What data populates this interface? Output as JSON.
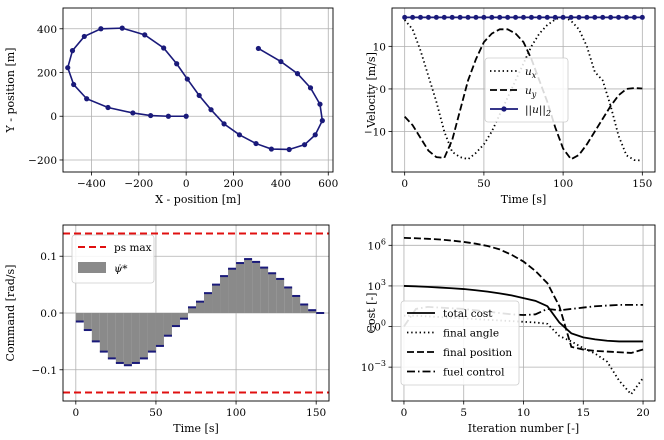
{
  "chart_data": [
    {
      "type": "line",
      "title": "",
      "xlabel": "X - position [m]",
      "ylabel": "Y - position [m]",
      "xlim": [
        -520,
        620
      ],
      "ylim": [
        -255,
        495
      ],
      "xticks": [
        -400,
        -200,
        0,
        200,
        400,
        600
      ],
      "yticks": [
        -200,
        0,
        200,
        400
      ],
      "xtick_labels": [
        "−400",
        "−200",
        "0",
        "200",
        "400",
        "600"
      ],
      "ytick_labels": [
        "−200",
        "0",
        "200",
        "400"
      ],
      "grid": true,
      "color": "#1a1a7a",
      "series": [
        {
          "name": "trajectory",
          "points": [
            [
              0,
              0
            ],
            [
              -75,
              0
            ],
            [
              -150,
              3
            ],
            [
              -225,
              15
            ],
            [
              -330,
              40
            ],
            [
              -420,
              80
            ],
            [
              -475,
              145
            ],
            [
              -500,
              222
            ],
            [
              -480,
              300
            ],
            [
              -430,
              365
            ],
            [
              -360,
              400
            ],
            [
              -270,
              403
            ],
            [
              -175,
              372
            ],
            [
              -95,
              312
            ],
            [
              -40,
              240
            ],
            [
              5,
              170
            ],
            [
              55,
              95
            ],
            [
              105,
              30
            ],
            [
              160,
              -35
            ],
            [
              225,
              -85
            ],
            [
              295,
              -125
            ],
            [
              360,
              -150
            ],
            [
              435,
              -152
            ],
            [
              500,
              -130
            ],
            [
              545,
              -85
            ],
            [
              575,
              -20
            ],
            [
              565,
              55
            ],
            [
              525,
              130
            ],
            [
              470,
              195
            ],
            [
              400,
              250
            ],
            [
              305,
              310
            ]
          ]
        }
      ]
    },
    {
      "type": "line",
      "title": "",
      "xlabel": "Time [s]",
      "ylabel": "Velocity [m/s]",
      "xlim": [
        -8,
        158
      ],
      "ylim": [
        -19.5,
        19
      ],
      "xticks": [
        0,
        50,
        100,
        150
      ],
      "yticks": [
        -10,
        0,
        10
      ],
      "xtick_labels": [
        "0",
        "50",
        "100",
        "150"
      ],
      "ytick_labels": [
        "−10",
        "0",
        "10"
      ],
      "grid": true,
      "legend": [
        "u_x",
        "u_y",
        "||u||_2"
      ],
      "legend_placement": "center-right",
      "series": [
        {
          "name": "u_x",
          "style": "dotted",
          "x": [
            0,
            5,
            10,
            15,
            20,
            25,
            30,
            35,
            40,
            45,
            50,
            55,
            60,
            65,
            70,
            75,
            80,
            85,
            90,
            95,
            100,
            105,
            110,
            115,
            120,
            125,
            130,
            135,
            140,
            145,
            150
          ],
          "values": [
            16.2,
            14,
            9,
            3,
            -3,
            -10,
            -14.8,
            -16,
            -16.5,
            -15,
            -13,
            -10,
            -6,
            -2,
            2,
            6,
            10,
            13,
            15,
            16.3,
            17,
            16,
            14,
            10,
            4,
            2,
            -4,
            -11,
            -15.6,
            -16.7,
            -16.8
          ]
        },
        {
          "name": "u_y",
          "style": "dashed",
          "x": [
            0,
            5,
            10,
            15,
            20,
            25,
            30,
            35,
            40,
            45,
            50,
            55,
            60,
            65,
            70,
            75,
            80,
            85,
            90,
            95,
            100,
            105,
            110,
            115,
            120,
            125,
            130,
            135,
            140,
            145,
            150
          ],
          "values": [
            -6.5,
            -8.5,
            -11.5,
            -14.5,
            -16,
            -16.2,
            -12,
            -5,
            2,
            7,
            11,
            13,
            14,
            14,
            13,
            11,
            7,
            2,
            -3,
            -9,
            -14,
            -16.5,
            -15.5,
            -13,
            -10,
            -7,
            -4,
            -1.5,
            0,
            0.2,
            0.1
          ]
        },
        {
          "name": "||u||_2",
          "style": "solid-marker",
          "color": "#1a1a7a",
          "x": [
            0,
            5,
            10,
            15,
            20,
            25,
            30,
            35,
            40,
            45,
            50,
            55,
            60,
            65,
            70,
            75,
            80,
            85,
            90,
            95,
            100,
            105,
            110,
            115,
            120,
            125,
            130,
            135,
            140,
            145,
            150
          ],
          "values": [
            16.8,
            16.8,
            16.8,
            16.8,
            16.8,
            16.8,
            16.8,
            16.8,
            16.8,
            16.8,
            16.8,
            16.8,
            16.8,
            16.8,
            16.8,
            16.8,
            16.8,
            16.8,
            16.8,
            16.8,
            16.8,
            16.8,
            16.8,
            16.8,
            16.8,
            16.8,
            16.8,
            16.8,
            16.8,
            16.8,
            16.8
          ]
        }
      ]
    },
    {
      "type": "bar",
      "title": "",
      "xlabel": "Time [s]",
      "ylabel": "Command [rad/s]",
      "xlim": [
        -8,
        158
      ],
      "ylim": [
        -0.155,
        0.155
      ],
      "xticks": [
        0,
        50,
        100,
        150
      ],
      "yticks": [
        -0.1,
        0,
        0.1
      ],
      "xtick_labels": [
        "0",
        "50",
        "100",
        "150"
      ],
      "ytick_labels": [
        "−0.1",
        "0.0",
        "0.1"
      ],
      "grid": true,
      "legend": [
        "ps max",
        "ψ̇*"
      ],
      "legend_placement": "top-left",
      "ps_max": 0.14,
      "step": 5,
      "x": [
        0,
        5,
        10,
        15,
        20,
        25,
        30,
        35,
        40,
        45,
        50,
        55,
        60,
        65,
        70,
        75,
        80,
        85,
        90,
        95,
        100,
        105,
        110,
        115,
        120,
        125,
        130,
        135,
        140,
        145,
        150
      ],
      "values": [
        -0.015,
        -0.03,
        -0.05,
        -0.068,
        -0.08,
        -0.088,
        -0.092,
        -0.088,
        -0.08,
        -0.068,
        -0.058,
        -0.04,
        -0.023,
        -0.01,
        0.01,
        0.02,
        0.035,
        0.05,
        0.065,
        0.078,
        0.088,
        0.095,
        0.09,
        0.08,
        0.07,
        0.06,
        0.045,
        0.03,
        0.015,
        0.005,
        0.0
      ]
    },
    {
      "type": "line",
      "title": "",
      "xlabel": "Iteration number [-]",
      "ylabel": "Cost [-]",
      "yscale": "log",
      "xlim": [
        -1,
        21
      ],
      "ylim_log10": [
        -5.5,
        7.5
      ],
      "xticks": [
        0,
        5,
        10,
        15,
        20
      ],
      "yticks_log10": [
        -3,
        0,
        3,
        6
      ],
      "xtick_labels": [
        "0",
        "5",
        "10",
        "15",
        "20"
      ],
      "ytick_labels": [
        "10^-3",
        "10^0",
        "10^3",
        "10^6"
      ],
      "grid": true,
      "legend": [
        "total cost",
        "final angle",
        "final position",
        "fuel control"
      ],
      "legend_placement": "lower-left",
      "series": [
        {
          "name": "total cost",
          "style": "solid",
          "x": [
            0,
            1,
            2,
            3,
            4,
            5,
            6,
            7,
            8,
            9,
            10,
            11,
            12,
            13,
            14,
            15,
            16,
            17,
            18,
            19,
            20
          ],
          "log10_values": [
            3,
            2.97,
            2.93,
            2.88,
            2.83,
            2.77,
            2.68,
            2.58,
            2.45,
            2.3,
            2.1,
            1.9,
            1.5,
            0.3,
            -0.5,
            -0.8,
            -0.95,
            -1.05,
            -1.1,
            -1.1,
            -1.1
          ]
        },
        {
          "name": "final angle",
          "style": "dotted",
          "x": [
            0,
            1,
            2,
            3,
            4,
            5,
            6,
            7,
            8,
            9,
            10,
            11,
            12,
            13,
            14,
            15,
            16,
            17,
            18,
            19,
            20
          ],
          "log10_values": [
            0.8,
            0.8,
            0.75,
            0.7,
            0.65,
            0.6,
            0.55,
            0.5,
            0.45,
            0.4,
            0.35,
            0.3,
            0.2,
            -0.7,
            -1.1,
            -1.6,
            -2,
            -2.6,
            -4,
            -5,
            -3.8
          ]
        },
        {
          "name": "final position",
          "style": "dashed",
          "x": [
            0,
            1,
            2,
            3,
            4,
            5,
            6,
            7,
            8,
            9,
            10,
            11,
            12,
            13,
            14,
            15,
            16,
            17,
            18,
            19,
            20
          ],
          "log10_values": [
            6.55,
            6.52,
            6.48,
            6.43,
            6.35,
            6.25,
            6.12,
            5.95,
            5.7,
            5.3,
            4.8,
            4.1,
            3.2,
            1.5,
            -1.5,
            -1.7,
            -1.8,
            -1.85,
            -1.9,
            -1.95,
            -1.7
          ]
        },
        {
          "name": "fuel control",
          "style": "dashdot",
          "x": [
            0,
            1,
            2,
            3,
            4,
            5,
            6,
            7,
            8,
            9,
            10,
            11,
            12,
            13,
            14,
            15,
            16,
            17,
            18,
            19,
            20
          ],
          "log10_values": [
            0,
            1.3,
            1.45,
            1.4,
            1.35,
            1.3,
            1.2,
            1.1,
            1.0,
            0.9,
            0.85,
            0.9,
            1.3,
            1.2,
            1.3,
            1.4,
            1.5,
            1.55,
            1.6,
            1.6,
            1.6
          ]
        }
      ]
    }
  ]
}
